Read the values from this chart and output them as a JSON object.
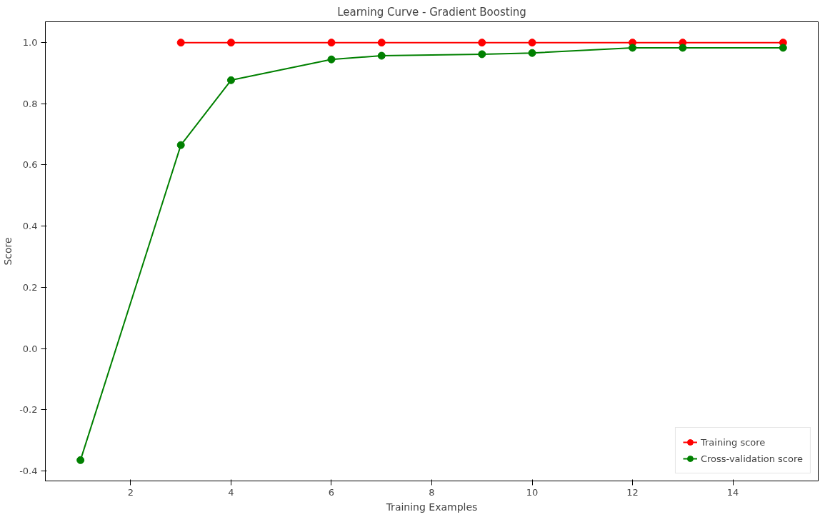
{
  "chart_data": {
    "type": "line",
    "title": "Learning Curve - Gradient Boosting",
    "xlabel": "Training Examples",
    "ylabel": "Score",
    "xlim": [
      0.3,
      15.7
    ],
    "xticks": [
      2,
      4,
      6,
      8,
      10,
      12,
      14
    ],
    "ylim": [
      -0.433,
      1.068
    ],
    "yticks": [
      -0.4,
      -0.2,
      {
        "value": 0,
        "label": "0.0"
      },
      0.2,
      0.4,
      0.6,
      0.8,
      {
        "value": 1,
        "label": "1.0"
      }
    ],
    "marker": "circle",
    "legend": "bottom right",
    "grid": false,
    "series": [
      {
        "name": "Training score",
        "color": "#ff0000",
        "x": [
          3,
          4,
          6,
          7,
          9,
          10,
          12,
          13,
          15
        ],
        "values": [
          1.0,
          1.0,
          1.0,
          1.0,
          1.0,
          1.0,
          1.0,
          1.0,
          1.0
        ]
      },
      {
        "name": "Cross-validation score",
        "color": "#008000",
        "x": [
          1,
          3,
          4,
          6,
          7,
          9,
          10,
          12,
          13,
          15
        ],
        "values": [
          -0.365,
          0.665,
          0.877,
          0.945,
          0.957,
          0.962,
          0.966,
          0.983,
          0.983,
          0.983
        ]
      }
    ]
  }
}
